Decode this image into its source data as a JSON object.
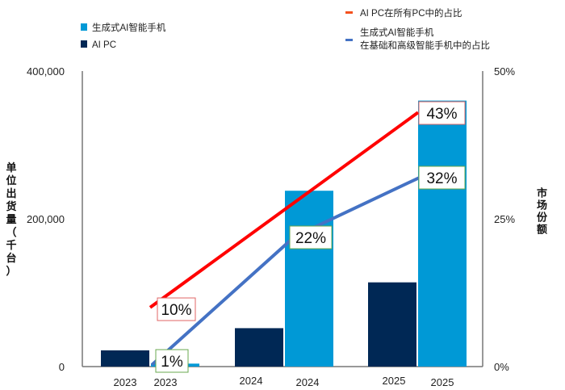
{
  "chart_data": {
    "type": "bar",
    "categories": [
      "2023",
      "2023",
      "2024",
      "2024",
      "2025",
      "2025"
    ],
    "years": [
      "2023",
      "2024",
      "2025"
    ],
    "ylabel": "单位出货量（千台）",
    "y2label": "市场份额",
    "ylim": [
      0,
      400000
    ],
    "y2lim": [
      0,
      50
    ],
    "yticks": [
      "0",
      "200,000",
      "400,000"
    ],
    "yticks_values": [
      0,
      200000,
      400000
    ],
    "y2ticks": [
      "0%",
      "25%",
      "50%"
    ],
    "y2ticks_values": [
      0,
      25,
      50
    ],
    "grid": false,
    "legend_placement": "top",
    "bar_series": [
      {
        "name": "AI PC",
        "color": "#002855",
        "values": [
          22000,
          52000,
          114000
        ]
      },
      {
        "name": "生成式AI智能手机",
        "color": "#0099D6",
        "values": [
          4000,
          238000,
          360000
        ]
      }
    ],
    "line_series": [
      {
        "name": "AI PC在所有PC中的占比",
        "color": "#FF0000",
        "x": [
          "2023",
          "2025"
        ],
        "values": [
          10,
          43
        ],
        "labels": [
          "10%",
          "43%"
        ],
        "label_border": "#E06666"
      },
      {
        "name": "生成式AI智能手机\n在基础和高级智能手机中的占比",
        "name_lines": [
          "生成式AI智能手机",
          "在基础和高级智能手机中的占比"
        ],
        "color": "#4472C4",
        "x": [
          "2023",
          "2024",
          "2025"
        ],
        "values": [
          1,
          22,
          32
        ],
        "labels": [
          "1%",
          "22%",
          "32%"
        ],
        "label_border": "#6AA84F"
      }
    ]
  }
}
